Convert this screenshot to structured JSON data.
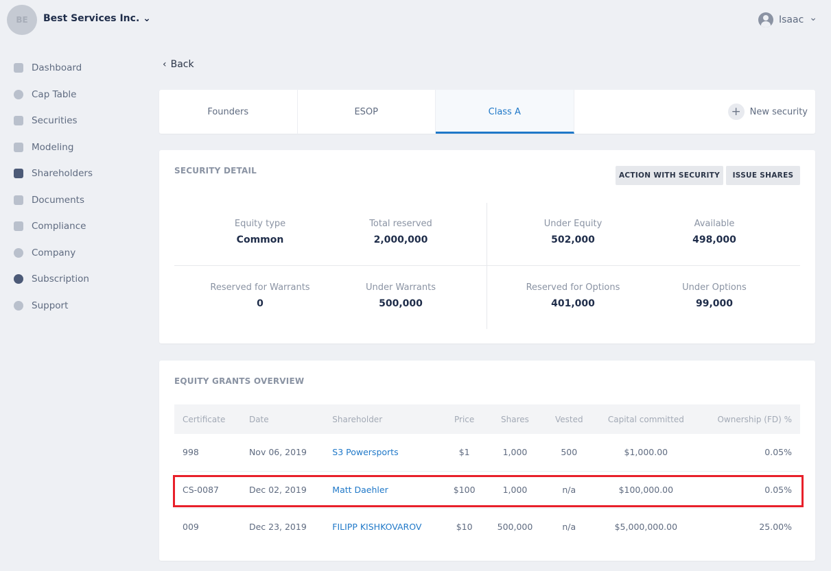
{
  "header": {
    "avatar_initials": "BE",
    "company": "Best Services Inc.",
    "user": "Isaac"
  },
  "sidebar": {
    "items": [
      {
        "label": "Dashboard",
        "icon": "dashboard-icon"
      },
      {
        "label": "Cap Table",
        "icon": "pie-chart-icon"
      },
      {
        "label": "Securities",
        "icon": "clipboard-icon"
      },
      {
        "label": "Modeling",
        "icon": "lightbulb-icon"
      },
      {
        "label": "Shareholders",
        "icon": "person-icon"
      },
      {
        "label": "Documents",
        "icon": "folder-lock-icon"
      },
      {
        "label": "Compliance",
        "icon": "document-check-icon"
      },
      {
        "label": "Company",
        "icon": "company-icon"
      },
      {
        "label": "Subscription",
        "icon": "dollar-icon"
      },
      {
        "label": "Support",
        "icon": "help-chat-icon"
      }
    ]
  },
  "back_label": "Back",
  "tabs": [
    {
      "label": "Founders"
    },
    {
      "label": "ESOP"
    },
    {
      "label": "Class A",
      "active": true
    }
  ],
  "new_security_label": "New security",
  "security_detail": {
    "title": "SECURITY DETAIL",
    "action_button": "ACTION WITH SECURITY",
    "issue_button": "ISSUE SHARES",
    "stats": [
      {
        "label": "Equity type",
        "value": "Common"
      },
      {
        "label": "Total reserved",
        "value": "2,000,000"
      },
      {
        "label": "Under Equity",
        "value": "502,000"
      },
      {
        "label": "Available",
        "value": "498,000"
      },
      {
        "label": "Reserved for Warrants",
        "value": "0"
      },
      {
        "label": "Under Warrants",
        "value": "500,000"
      },
      {
        "label": "Reserved for Options",
        "value": "401,000"
      },
      {
        "label": "Under Options",
        "value": "99,000"
      }
    ]
  },
  "grants": {
    "title": "EQUITY GRANTS OVERVIEW",
    "columns": [
      "Certificate",
      "Date",
      "Shareholder",
      "Price",
      "Shares",
      "Vested",
      "Capital committed",
      "Ownership (FD) %"
    ],
    "rows": [
      [
        "998",
        "Nov 06, 2019",
        "S3 Powersports",
        "$1",
        "1,000",
        "500",
        "$1,000.00",
        "0.05%"
      ],
      [
        "CS-0087",
        "Dec 02, 2019",
        "Matt Daehler",
        "$100",
        "1,000",
        "n/a",
        "$100,000.00",
        "0.05%"
      ],
      [
        "009",
        "Dec 23, 2019",
        "FILIPP KISHKOVAROV",
        "$10",
        "500,000",
        "n/a",
        "$5,000,000.00",
        "25.00%"
      ]
    ]
  },
  "colors": {
    "accent": "#1f78c8",
    "highlight": "#e8202a",
    "background": "#eef0f4"
  }
}
